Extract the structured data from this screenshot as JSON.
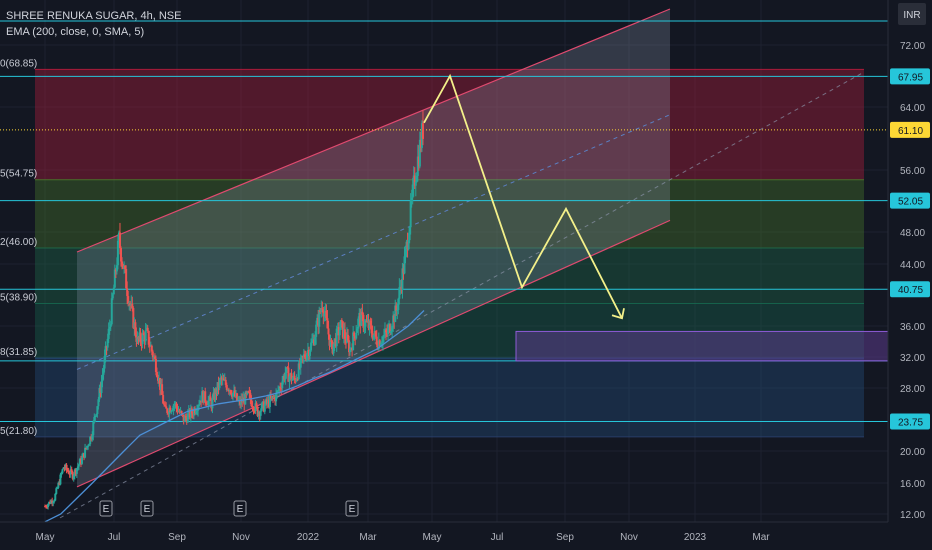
{
  "symbol_line": "SHREE RENUKA SUGAR, 4h, NSE",
  "indicator_line": "EMA (200, close, 0, SMA, 5)",
  "currency": "INR",
  "chart_data": {
    "type": "candlestick",
    "ylim": [
      11,
      76
    ],
    "y_ticks": [
      {
        "label": "72.00",
        "value": 72
      },
      {
        "label": "64.00",
        "value": 64
      },
      {
        "label": "56.00",
        "value": 56
      },
      {
        "label": "48.00",
        "value": 48
      },
      {
        "label": "44.00",
        "value": 44
      },
      {
        "label": "36.00",
        "value": 36
      },
      {
        "label": "32.00",
        "value": 32
      },
      {
        "label": "28.00",
        "value": 28
      },
      {
        "label": "20.00",
        "value": 20
      },
      {
        "label": "16.00",
        "value": 16
      },
      {
        "label": "12.00",
        "value": 12
      }
    ],
    "x_ticks": [
      "May",
      "Jul",
      "Sep",
      "Nov",
      "2022",
      "Mar",
      "May",
      "Jul",
      "Sep",
      "Nov",
      "2023",
      "Mar"
    ],
    "price_labels": [
      {
        "label": "67.95",
        "value": 67.95,
        "color": "#26c6da"
      },
      {
        "label": "61.10",
        "value": 61.1,
        "color": "#fdd835"
      },
      {
        "label": "52.05",
        "value": 52.05,
        "color": "#26c6da"
      },
      {
        "label": "40.75",
        "value": 40.75,
        "color": "#26c6da"
      },
      {
        "label": "23.75",
        "value": 23.75,
        "color": "#26c6da"
      }
    ],
    "horizontal_lines": [
      75,
      67.95,
      52.05,
      40.75,
      31.5,
      23.75
    ],
    "fib_levels": [
      {
        "label": "0(68.85)",
        "value": 68.85,
        "zone_color": "#b71c3c"
      },
      {
        "label": "5(54.75)",
        "value": 54.75,
        "zone_color": "#4a7a2a"
      },
      {
        "label": "2(46.00)",
        "value": 46.0,
        "zone_color": "#1f6b4a"
      },
      {
        "label": "5(38.90)",
        "value": 38.9,
        "zone_color": "#17664f"
      },
      {
        "label": "8(31.85)",
        "value": 31.85,
        "zone_color": "#26507f"
      },
      {
        "label": "5(21.80)",
        "value": 21.8,
        "zone_color": "#2a3f6b"
      }
    ],
    "events": [
      "E",
      "E",
      "E",
      "E"
    ],
    "close_series": [
      13,
      14,
      18,
      17,
      19,
      22,
      28,
      36,
      47,
      40,
      34,
      35,
      31,
      25,
      26,
      24,
      25,
      27,
      26,
      29,
      28,
      26,
      27,
      25,
      26,
      27,
      30,
      29,
      32,
      34,
      39,
      33,
      36,
      33,
      37,
      36,
      34,
      35,
      38,
      45,
      55,
      62
    ],
    "ema_series": [
      11,
      12,
      14,
      16,
      18,
      20,
      22,
      23,
      24,
      25,
      25.5,
      26,
      26.3,
      26.6,
      27,
      27.5,
      28.3,
      29.2,
      30,
      31,
      32,
      33,
      34.5,
      36,
      38
    ],
    "projection_path": [
      62,
      68,
      41,
      51,
      37
    ],
    "target_zone": [
      31.5,
      35.3
    ]
  }
}
